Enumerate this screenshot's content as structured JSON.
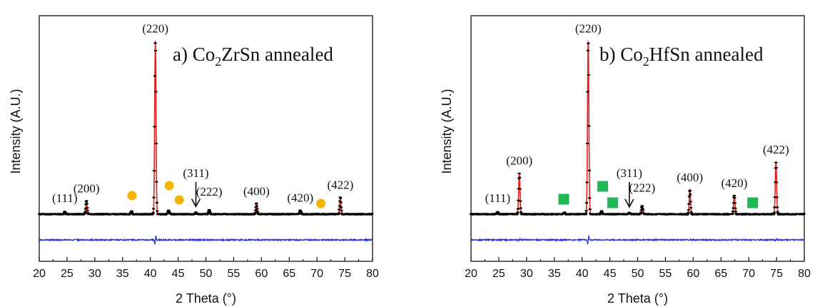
{
  "chart_data": [
    {
      "type": "line",
      "title_prefix": "a) Co",
      "title_sub": "2",
      "title_suffix": "ZrSn annealed",
      "xlabel": "2 Theta (°)",
      "ylabel": "Intensity (A.U.)",
      "xlim": [
        20,
        80
      ],
      "xticks": [
        "20",
        "25",
        "30",
        "35",
        "40",
        "45",
        "50",
        "55",
        "60",
        "65",
        "70",
        "75",
        "80"
      ],
      "series": [
        {
          "role": "observed",
          "color": "#000000",
          "baseline": 0.1,
          "peaks": [
            [
              24.6,
              0.012
            ],
            [
              28.5,
              0.07
            ],
            [
              36.6,
              0.015
            ],
            [
              40.9,
              0.91
            ],
            [
              43.3,
              0.02
            ],
            [
              48.2,
              0.01
            ],
            [
              50.6,
              0.022
            ],
            [
              59.1,
              0.055
            ],
            [
              67.0,
              0.02
            ],
            [
              74.2,
              0.088
            ]
          ]
        },
        {
          "role": "calculated",
          "color": "#e0201b"
        },
        {
          "role": "difference",
          "color": "#1f2de0"
        }
      ],
      "peak_labels": [
        {
          "text": "(111)",
          "x": 24.6
        },
        {
          "text": "(200)",
          "x": 28.5
        },
        {
          "text": "(220)",
          "x": 40.9
        },
        {
          "text": "(311)",
          "x": 48.2
        },
        {
          "text": "(222)",
          "x": 50.6
        },
        {
          "text": "(400)",
          "x": 59.1
        },
        {
          "text": "(420)",
          "x": 67.0
        },
        {
          "text": "(422)",
          "x": 74.2
        }
      ],
      "arrow_at": 48.2,
      "impurity_marker": {
        "shape": "circle",
        "color": "#f5b400",
        "x": [
          36.7,
          43.4,
          45.2,
          70.7
        ]
      }
    },
    {
      "type": "line",
      "title_prefix": "b) Co",
      "title_sub": "2",
      "title_suffix": "HfSn annealed",
      "xlabel": "2 Theta (°)",
      "ylabel": "Intensity (A.U.)",
      "xlim": [
        20,
        80
      ],
      "xticks": [
        "20",
        "25",
        "30",
        "35",
        "40",
        "45",
        "50",
        "55",
        "60",
        "65",
        "70",
        "75",
        "80"
      ],
      "series": [
        {
          "role": "observed",
          "color": "#000000",
          "baseline": 0.08,
          "peaks": [
            [
              24.8,
              0.012
            ],
            [
              28.7,
              0.22
            ],
            [
              36.8,
              0.01
            ],
            [
              41.1,
              0.93
            ],
            [
              43.5,
              0.015
            ],
            [
              48.5,
              0.008
            ],
            [
              50.8,
              0.045
            ],
            [
              59.4,
              0.13
            ],
            [
              67.4,
              0.1
            ],
            [
              74.9,
              0.28
            ]
          ]
        },
        {
          "role": "calculated",
          "color": "#e0201b"
        },
        {
          "role": "difference",
          "color": "#1f2de0"
        }
      ],
      "peak_labels": [
        {
          "text": "(111)",
          "x": 24.8
        },
        {
          "text": "(200)",
          "x": 28.7
        },
        {
          "text": "(220)",
          "x": 41.1
        },
        {
          "text": "(311)",
          "x": 48.5
        },
        {
          "text": "(222)",
          "x": 50.8
        },
        {
          "text": "(400)",
          "x": 59.4
        },
        {
          "text": "(420)",
          "x": 67.4
        },
        {
          "text": "(422)",
          "x": 74.9
        }
      ],
      "arrow_at": 48.5,
      "impurity_marker": {
        "shape": "square",
        "color": "#1db954",
        "x": [
          36.7,
          43.7,
          45.5,
          70.7
        ]
      }
    }
  ]
}
